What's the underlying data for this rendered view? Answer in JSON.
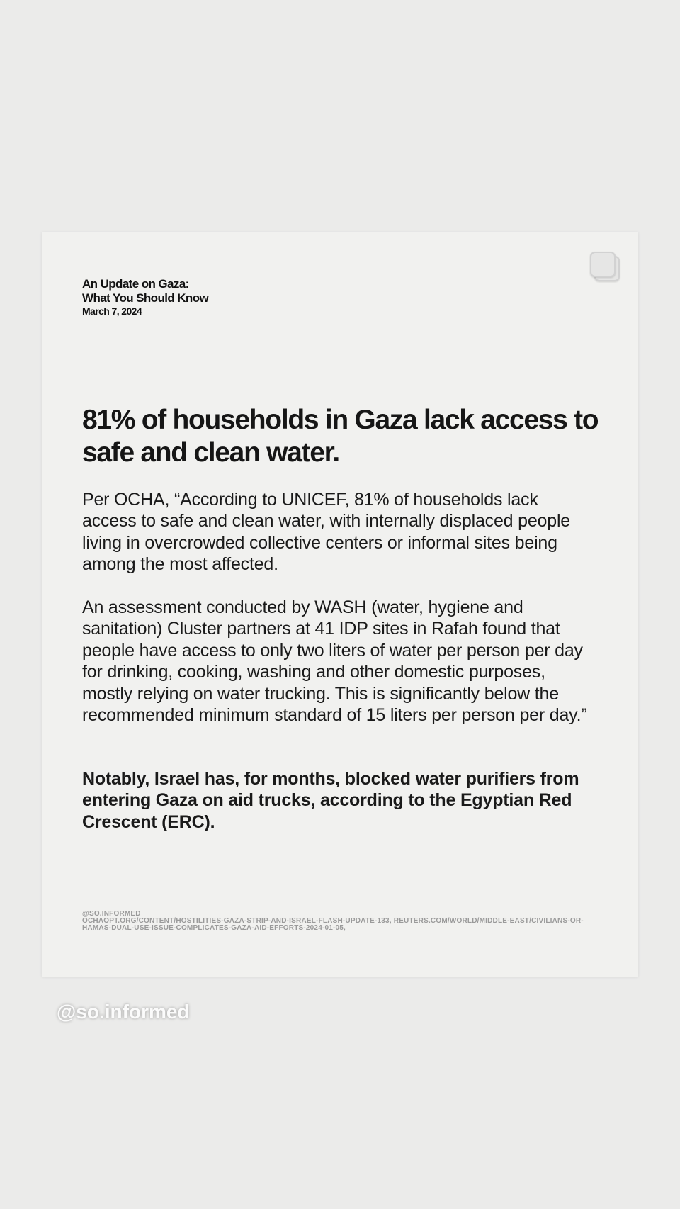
{
  "header": {
    "title_line1": "An Update on Gaza:",
    "title_line2": "What You Should Know",
    "date": "March 7, 2024"
  },
  "headline": "81% of households in Gaza lack access to safe and clean water.",
  "paragraphs": [
    "Per OCHA, “According to UNICEF, 81% of households lack access to safe and clean water, with internally displaced people living in overcrowded collective centers or informal sites being among the most affected.",
    "An assessment conducted by WASH (water, hygiene and sanitation) Cluster partners at 41 IDP sites in Rafah found that people have access to only two liters of water per person per day for drinking, cooking, washing and other domestic purposes, mostly relying on water trucking. This is significantly below the recommended minimum standard of 15 liters per person per day.”",
    "Notably, Israel has, for months, blocked water purifiers from entering Gaza on aid trucks, according to the Egyptian Red Crescent (ERC)."
  ],
  "footer": {
    "handle": "@SO.INFORMED",
    "sources": "OCHAOPT.ORG/CONTENT/HOSTILITIES-GAZA-STRIP-AND-ISRAEL-FLASH-UPDATE-133, REUTERS.COM/WORLD/MIDDLE-EAST/CIVILIANS-OR-HAMAS-DUAL-USE-ISSUE-COMPLICATES-GAZA-AID-EFFORTS-2024-01-05,"
  },
  "watermark": "@so.informed",
  "icons": {
    "carousel": "multiple-images-icon"
  }
}
